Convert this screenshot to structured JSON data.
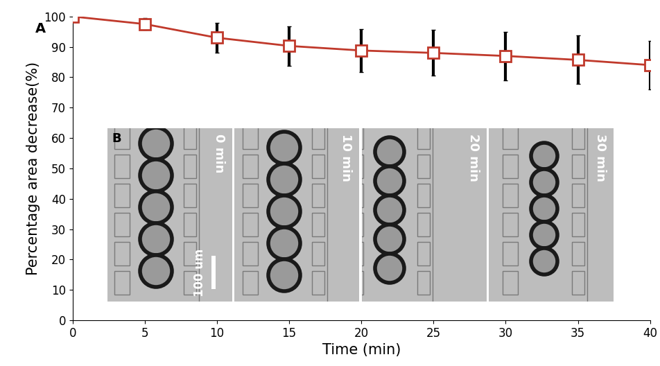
{
  "chart_data": {
    "type": "line",
    "panel_label": "A",
    "xlabel": "Time (min)",
    "ylabel": "Percentage area decrease(%)",
    "x": [
      0,
      5,
      10,
      15,
      20,
      25,
      30,
      35,
      40
    ],
    "values": [
      100,
      97.5,
      93,
      90.3,
      88.8,
      88,
      87,
      85.7,
      84
    ],
    "errors": [
      0,
      2,
      5,
      6.5,
      7,
      7.5,
      8,
      8,
      8
    ],
    "color": "#c0392b",
    "marker": "square",
    "line_style": "solid",
    "xlim": [
      0,
      40
    ],
    "xticks": [
      0,
      5,
      10,
      15,
      20,
      25,
      30,
      35,
      40
    ],
    "ylim": [
      0,
      100
    ],
    "yticks": [
      0,
      10,
      20,
      30,
      40,
      50,
      60,
      70,
      80,
      90,
      100
    ],
    "grid": false,
    "inset": {
      "label": "B",
      "times": [
        "0 min",
        "10 min",
        "20 min",
        "30 min"
      ],
      "scale_bar": "100 um"
    }
  }
}
